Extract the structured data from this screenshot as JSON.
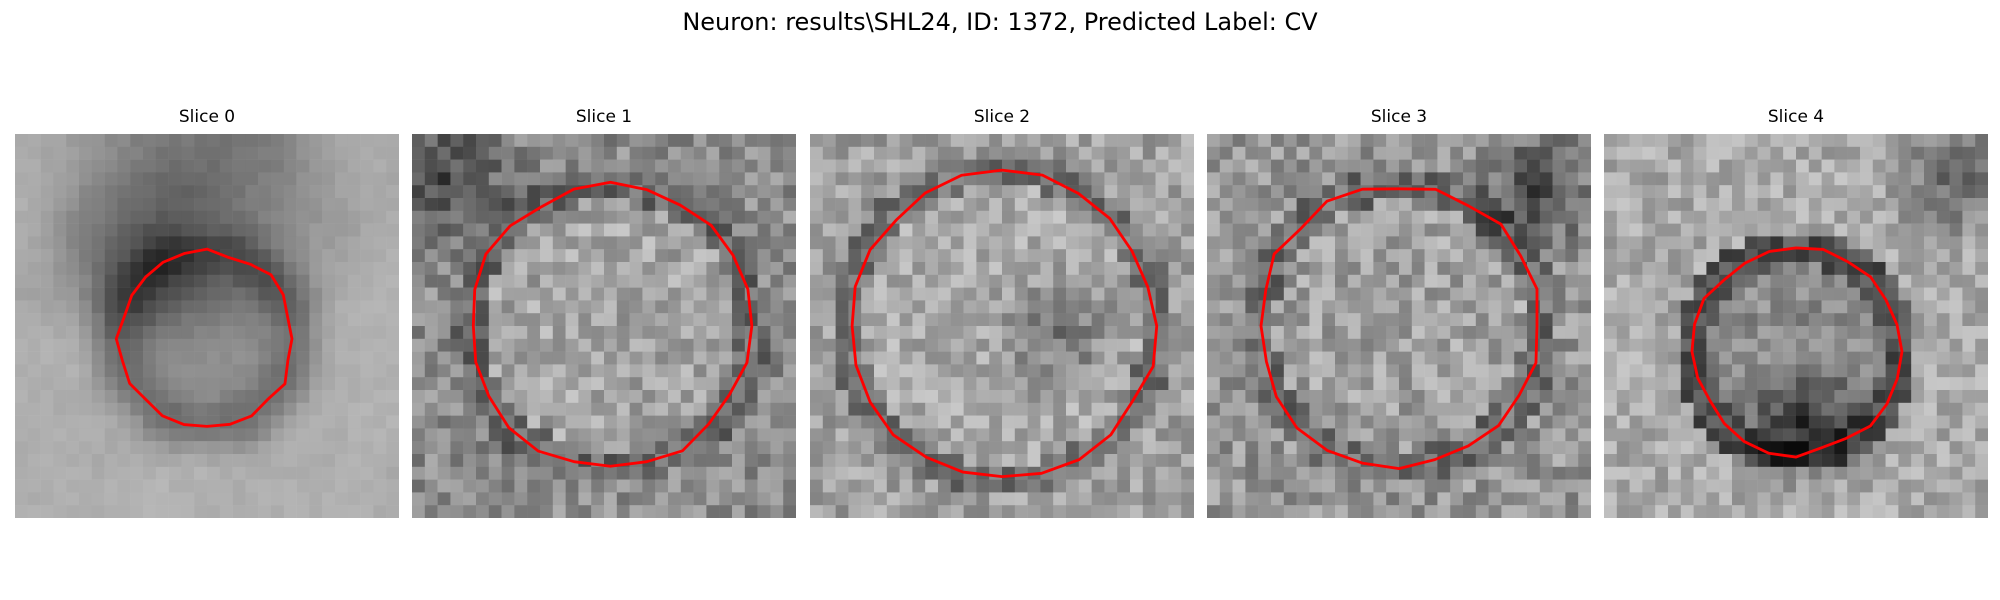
{
  "figure": {
    "title": "Neuron: results\\SHL24, ID: 1372, Predicted Label: CV",
    "contour_color": "#ff0000"
  },
  "slices": [
    {
      "label": "Slice 0"
    },
    {
      "label": "Slice 1"
    },
    {
      "label": "Slice 2"
    },
    {
      "label": "Slice 3"
    },
    {
      "label": "Slice 4"
    }
  ]
}
